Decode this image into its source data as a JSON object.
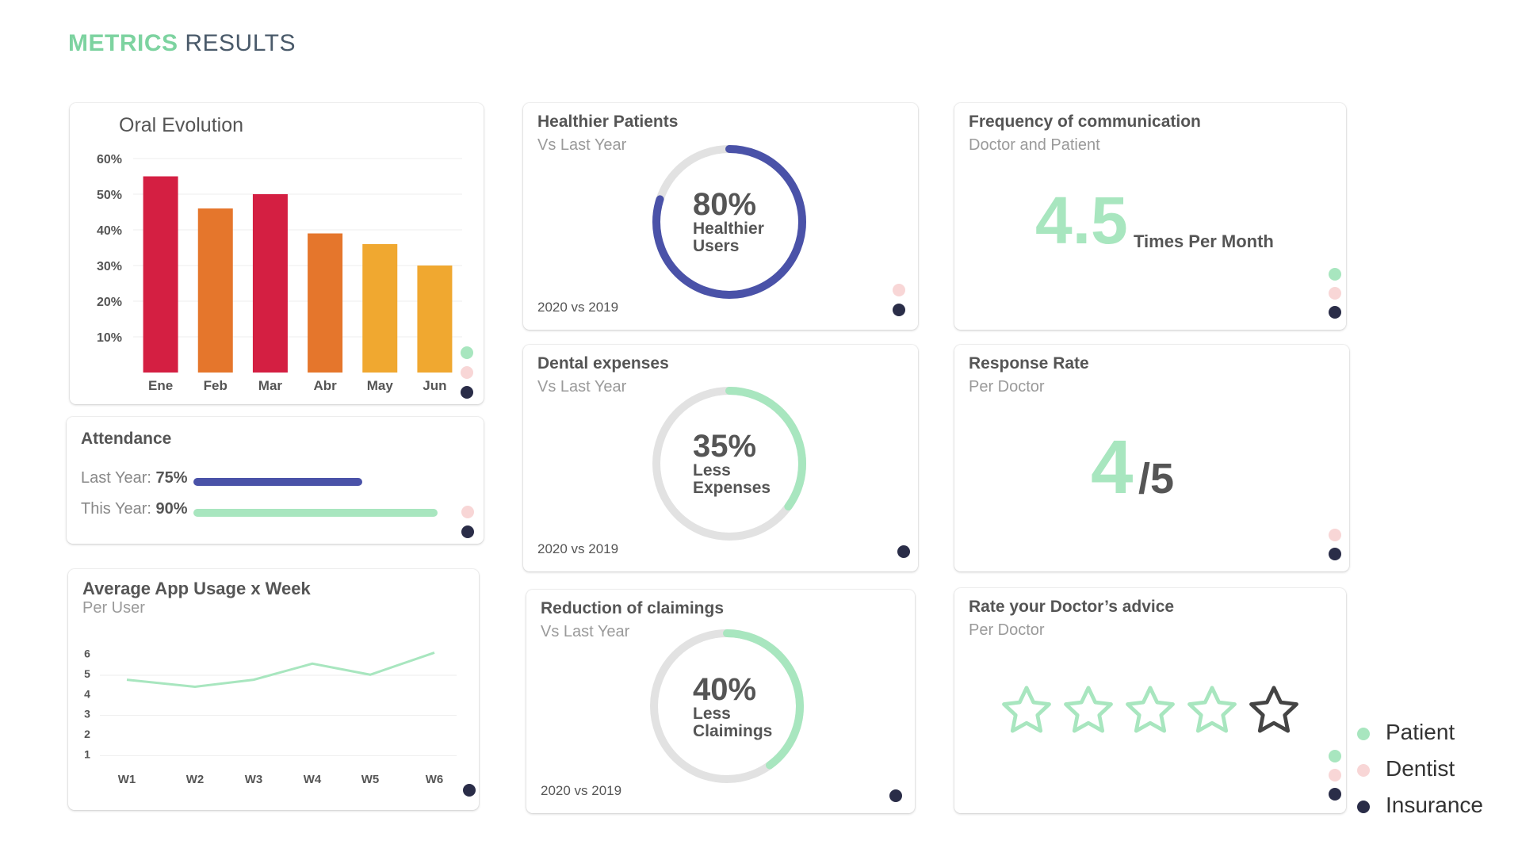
{
  "page": {
    "title_accent": "METRICS",
    "title_rest": "RESULTS"
  },
  "colors": {
    "patient": "#a8e6bf",
    "dentist": "#f8d6d6",
    "insurance": "#2a2d48",
    "ring_blue": "#4a52a8",
    "ring_green": "#a8e6bf",
    "ring_track": "#e2e2e2"
  },
  "legend": [
    {
      "label": "Patient",
      "color": "#a8e6bf"
    },
    {
      "label": "Dentist",
      "color": "#f8d6d6"
    },
    {
      "label": "Insurance",
      "color": "#2a2d48"
    }
  ],
  "chart_data": [
    {
      "type": "bar",
      "title": "Oral Evolution",
      "categories": [
        "Ene",
        "Feb",
        "Mar",
        "Abr",
        "May",
        "Jun"
      ],
      "values": [
        55,
        46,
        50,
        39,
        36,
        30
      ],
      "bar_colors": [
        "#d41f42",
        "#e5762c",
        "#d41f42",
        "#e5762c",
        "#f0a830",
        "#f0a830"
      ],
      "yticks": [
        "60%",
        "50%",
        "40%",
        "30%",
        "20%",
        "10%"
      ],
      "ylim": [
        0,
        60
      ],
      "grid": true
    },
    {
      "type": "line",
      "title": "Average App Usage x Week",
      "subtitle": "Per User",
      "x": [
        "W1",
        "W2",
        "W3",
        "W4",
        "W5",
        "W6"
      ],
      "values": [
        4.7,
        4.35,
        4.7,
        5.5,
        4.95,
        6.05
      ],
      "yticks": [
        "6",
        "5",
        "4",
        "3",
        "2",
        "1"
      ],
      "ylim": [
        0.5,
        6.5
      ],
      "color": "#a8e6bf",
      "grid": true
    }
  ],
  "attendance": {
    "title": "Attendance",
    "last_year_label": "Last Year:",
    "last_year_value": "75%",
    "last_year_fraction": 0.75,
    "this_year_label": "This Year:",
    "this_year_value": "90%",
    "this_year_fraction": 0.9
  },
  "healthier": {
    "title": "Healthier Patients",
    "subtitle": "Vs Last Year",
    "pct": "80%",
    "line1": "Healthier",
    "line2": "Users",
    "fraction": 0.8,
    "footer": "2020 vs 2019"
  },
  "dental": {
    "title": "Dental expenses",
    "subtitle": "Vs Last Year",
    "pct": "35%",
    "line1": "Less",
    "line2": "Expenses",
    "fraction": 0.35,
    "footer": "2020 vs 2019"
  },
  "claims": {
    "title": "Reduction of claimings",
    "subtitle": "Vs Last Year",
    "pct": "40%",
    "line1": "Less",
    "line2": "Claimings",
    "fraction": 0.4,
    "footer": "2020 vs 2019"
  },
  "frequency": {
    "title": "Frequency of communication",
    "subtitle": "Doctor and Patient",
    "value": "4.5",
    "unit": "Times Per Month"
  },
  "response": {
    "title": "Response Rate",
    "subtitle": "Per Doctor",
    "value": "4",
    "of": "/5"
  },
  "rating": {
    "title": "Rate your Doctor’s advice",
    "subtitle": "Per Doctor",
    "value": 4,
    "max": 5
  }
}
